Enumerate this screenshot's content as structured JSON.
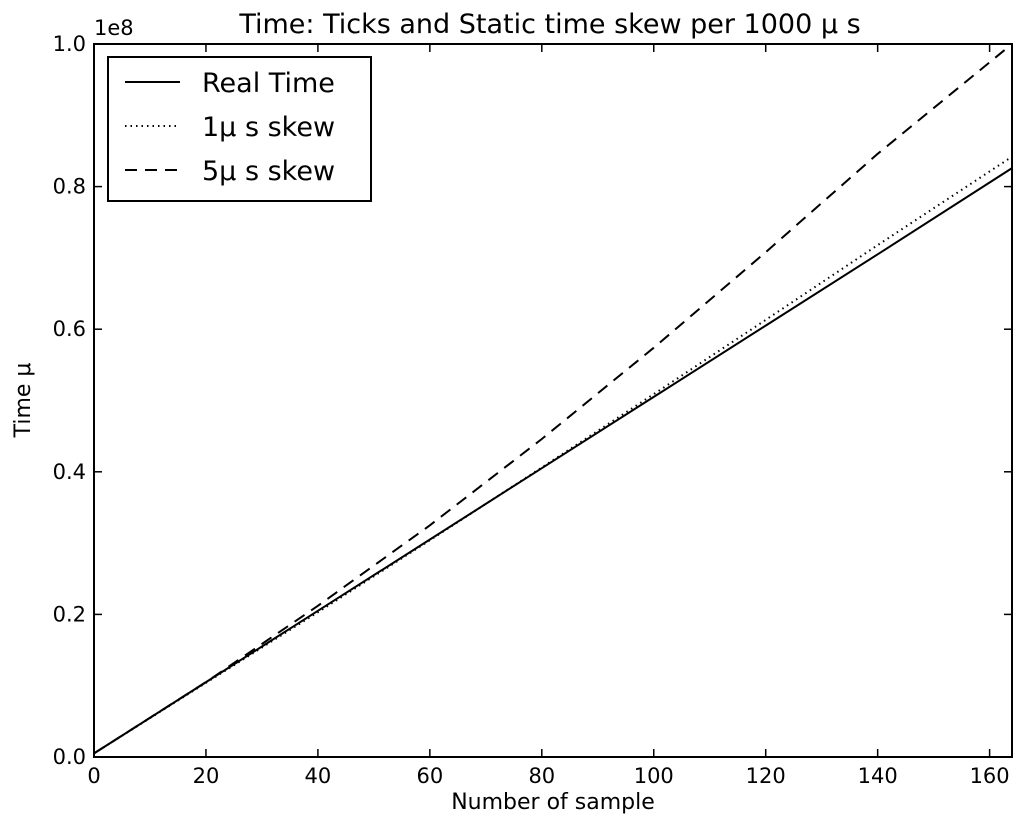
{
  "chart_data": {
    "type": "line",
    "title": "Time: Ticks and Static time skew per 1000 μ s",
    "xlabel": "Number of sample",
    "ylabel": "Time μ",
    "offset_label": "1e8",
    "xlim": [
      0,
      164
    ],
    "ylim": [
      0.0,
      1.0
    ],
    "xticks": [
      0,
      20,
      40,
      60,
      80,
      100,
      120,
      140,
      160
    ],
    "xtick_labels": [
      "0",
      "20",
      "40",
      "60",
      "80",
      "100",
      "120",
      "140",
      "160"
    ],
    "yticks": [
      0.0,
      0.2,
      0.4,
      0.6,
      0.8,
      1.0
    ],
    "ytick_labels": [
      "0.0",
      "0.2",
      "0.4",
      "0.6",
      "0.8",
      "1.0"
    ],
    "grid": false,
    "legend_position": "top-left",
    "series": [
      {
        "name": "Real Time",
        "style": "solid",
        "x": [
          0,
          20,
          40,
          60,
          80,
          100,
          120,
          140,
          164
        ],
        "values": [
          0.005,
          0.105,
          0.205,
          0.305,
          0.405,
          0.505,
          0.605,
          0.705,
          0.826
        ]
      },
      {
        "name": "1μ  s skew",
        "style": "dotted",
        "x": [
          0,
          20,
          40,
          60,
          80,
          100,
          120,
          140,
          164
        ],
        "values": [
          0.005,
          0.104,
          0.203,
          0.304,
          0.406,
          0.509,
          0.613,
          0.718,
          0.842
        ]
      },
      {
        "name": "5μ  s skew",
        "style": "dashed",
        "x": [
          0,
          20,
          40,
          60,
          80,
          100,
          120,
          140,
          164
        ],
        "values": [
          0.005,
          0.105,
          0.212,
          0.325,
          0.446,
          0.574,
          0.708,
          0.846,
          1.0
        ]
      }
    ],
    "colors": {
      "line": "#000000",
      "background": "#ffffff"
    }
  }
}
